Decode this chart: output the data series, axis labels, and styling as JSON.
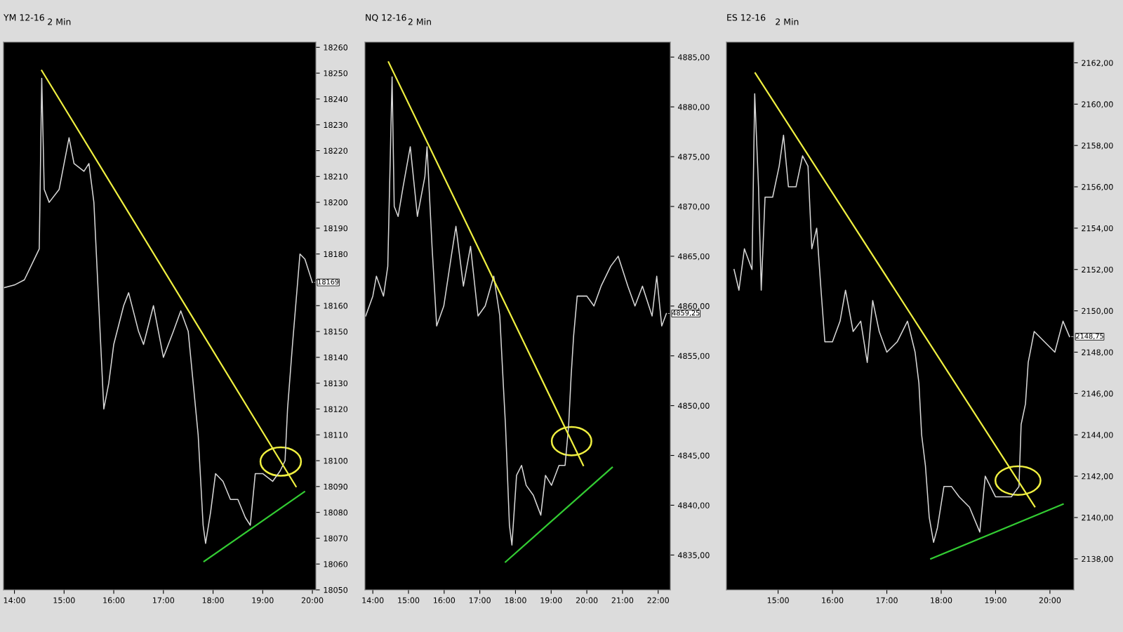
{
  "chart_data": [
    {
      "type": "line",
      "title": "YM 12-16",
      "subtitle": "2 Min",
      "legend": false,
      "grid": false,
      "marker": "none",
      "xlim": [
        13.78,
        20.07
      ],
      "ylim": [
        18050,
        18262
      ],
      "xticks": [
        {
          "value": 14,
          "label": "14:00"
        },
        {
          "value": 15,
          "label": "15:00"
        },
        {
          "value": 16,
          "label": "16:00"
        },
        {
          "value": 17,
          "label": "17:00"
        },
        {
          "value": 18,
          "label": "18:00"
        },
        {
          "value": 19,
          "label": "19:00"
        },
        {
          "value": 20,
          "label": "20:00"
        }
      ],
      "yticks": [
        18050,
        18060,
        18070,
        18080,
        18090,
        18100,
        18110,
        18120,
        18130,
        18140,
        18150,
        18160,
        {
          "value": 18170,
          "label": null
        },
        18180,
        18190,
        18200,
        18210,
        18220,
        18230,
        18240,
        18250,
        18260
      ],
      "annotations": [
        {
          "text": "18169",
          "x": 20.0,
          "y": 18169
        }
      ],
      "series": [
        {
          "color": "#d8d8d8",
          "line_style": "solid",
          "x": [
            13.8,
            14.0,
            14.2,
            14.4,
            14.5,
            14.55,
            14.6,
            14.7,
            14.9,
            15.0,
            15.1,
            15.2,
            15.4,
            15.5,
            15.6,
            15.7,
            15.8,
            15.9,
            16.0,
            16.2,
            16.3,
            16.5,
            16.6,
            16.8,
            16.9,
            17.0,
            17.2,
            17.35,
            17.5,
            17.6,
            17.7,
            17.8,
            17.85,
            17.95,
            18.05,
            18.2,
            18.35,
            18.5,
            18.65,
            18.75,
            18.85,
            19.0,
            19.2,
            19.35,
            19.45,
            19.5,
            19.6,
            19.75,
            19.85,
            19.95,
            20.0
          ],
          "values": [
            18167,
            18168,
            18170,
            18178,
            18182,
            18248,
            18205,
            18200,
            18205,
            18215,
            18225,
            18215,
            18212,
            18215,
            18200,
            18160,
            18120,
            18130,
            18145,
            18160,
            18165,
            18150,
            18145,
            18160,
            18150,
            18140,
            18150,
            18158,
            18150,
            18130,
            18110,
            18075,
            18068,
            18080,
            18095,
            18092,
            18085,
            18085,
            18078,
            18075,
            18095,
            18095,
            18092,
            18096,
            18100,
            18120,
            18145,
            18180,
            18178,
            18172,
            18169
          ]
        },
        {
          "color": "#f0f040",
          "line_style": "solid",
          "x": [
            14.55,
            19.67
          ],
          "values": [
            18251,
            18090
          ]
        },
        {
          "color": "#33cc33",
          "line_style": "solid",
          "x": [
            17.82,
            19.84
          ],
          "values": [
            18061,
            18088
          ]
        }
      ]
    },
    {
      "type": "line",
      "title": "NQ 12-16",
      "subtitle": "2 Min",
      "legend": false,
      "grid": false,
      "marker": "none",
      "xlim": [
        13.78,
        22.34
      ],
      "ylim": [
        4831.5,
        4886.5
      ],
      "xticks": [
        {
          "value": 14,
          "label": "14:00"
        },
        {
          "value": 15,
          "label": "15:00"
        },
        {
          "value": 16,
          "label": "16:00"
        },
        {
          "value": 17,
          "label": "17:00"
        },
        {
          "value": 18,
          "label": "18:00"
        },
        {
          "value": 19,
          "label": "19:00"
        },
        {
          "value": 20,
          "label": "20:00"
        },
        {
          "value": 21,
          "label": "21:00"
        },
        {
          "value": 22,
          "label": "22:00"
        }
      ],
      "yticks": [
        {
          "value": 4835,
          "label": "4835,00"
        },
        {
          "value": 4840,
          "label": "4840,00"
        },
        {
          "value": 4845,
          "label": "4845,00"
        },
        {
          "value": 4850,
          "label": "4850,00"
        },
        {
          "value": 4855,
          "label": "4855,00"
        },
        {
          "value": 4860,
          "label": "4860,00"
        },
        {
          "value": 4865,
          "label": "4865,00"
        },
        {
          "value": 4870,
          "label": "4870,00"
        },
        {
          "value": 4875,
          "label": "4875,00"
        },
        {
          "value": 4880,
          "label": "4880,00"
        },
        {
          "value": 4885,
          "label": "4885,00"
        }
      ],
      "annotations": [
        {
          "text": "4859,25",
          "x": 22.23,
          "y": 4859.25
        }
      ],
      "series": [
        {
          "color": "#d8d8d8",
          "line_style": "solid",
          "x": [
            13.8,
            14.0,
            14.1,
            14.3,
            14.42,
            14.54,
            14.6,
            14.71,
            14.85,
            15.05,
            15.25,
            15.46,
            15.52,
            15.66,
            15.79,
            15.99,
            16.2,
            16.33,
            16.54,
            16.74,
            16.95,
            17.15,
            17.39,
            17.56,
            17.66,
            17.72,
            17.83,
            17.9,
            18.03,
            18.17,
            18.3,
            18.5,
            18.71,
            18.84,
            19.01,
            19.22,
            19.39,
            19.49,
            19.56,
            19.63,
            19.73,
            20.0,
            20.2,
            20.4,
            20.67,
            20.88,
            21.15,
            21.35,
            21.56,
            21.83,
            21.96,
            22.1,
            22.23
          ],
          "values": [
            4859,
            4861,
            4863,
            4861,
            4864,
            4883,
            4870,
            4869,
            4872,
            4876,
            4869,
            4873,
            4876,
            4866,
            4858,
            4860,
            4865,
            4868,
            4862,
            4866,
            4859,
            4860,
            4863,
            4859,
            4852,
            4848,
            4838,
            4836,
            4843,
            4844,
            4842,
            4841,
            4839,
            4843,
            4842,
            4844,
            4844,
            4848,
            4853,
            4857,
            4861,
            4861,
            4860,
            4862,
            4864,
            4865,
            4862,
            4860,
            4862,
            4859,
            4863,
            4858,
            4859.25
          ]
        },
        {
          "color": "#f0f040",
          "line_style": "solid",
          "x": [
            14.44,
            19.9
          ],
          "values": [
            4884.5,
            4844
          ]
        },
        {
          "color": "#33cc33",
          "line_style": "solid",
          "x": [
            17.72,
            20.71
          ],
          "values": [
            4834.3,
            4843.8
          ]
        }
      ]
    },
    {
      "type": "line",
      "title": "ES 12-16",
      "subtitle": "2 Min",
      "legend": false,
      "grid": false,
      "marker": "none",
      "xlim": [
        14.05,
        20.44
      ],
      "ylim": [
        2136.5,
        2163
      ],
      "xticks": [
        {
          "value": 15,
          "label": "15:00"
        },
        {
          "value": 16,
          "label": "16:00"
        },
        {
          "value": 17,
          "label": "17:00"
        },
        {
          "value": 18,
          "label": "18:00"
        },
        {
          "value": 19,
          "label": "19:00"
        },
        {
          "value": 20,
          "label": "20:00"
        }
      ],
      "yticks": [
        {
          "value": 2138,
          "label": "2138,00"
        },
        {
          "value": 2140,
          "label": "2140,00"
        },
        {
          "value": 2142,
          "label": "2142,00"
        },
        {
          "value": 2144,
          "label": "2144,00"
        },
        {
          "value": 2146,
          "label": "2146,00"
        },
        {
          "value": 2148,
          "label": "2148,00"
        },
        {
          "value": 2150,
          "label": "2150,00"
        },
        {
          "value": 2152,
          "label": "2152,00"
        },
        {
          "value": 2154,
          "label": "2154,00"
        },
        {
          "value": 2156,
          "label": "2156,00"
        },
        {
          "value": 2158,
          "label": "2158,00"
        },
        {
          "value": 2160,
          "label": "2160,00"
        },
        {
          "value": 2162,
          "label": "2162,00"
        }
      ],
      "annotations": [
        {
          "text": "2148,75",
          "x": 20.36,
          "y": 2148.75
        }
      ],
      "series": [
        {
          "color": "#d8d8d8",
          "line_style": "solid",
          "x": [
            14.19,
            14.28,
            14.38,
            14.52,
            14.57,
            14.64,
            14.69,
            14.76,
            14.9,
            15.02,
            15.1,
            15.19,
            15.33,
            15.45,
            15.55,
            15.62,
            15.71,
            15.79,
            15.86,
            16.0,
            16.14,
            16.24,
            16.38,
            16.52,
            16.64,
            16.74,
            16.86,
            17.0,
            17.19,
            17.38,
            17.52,
            17.59,
            17.64,
            17.71,
            17.78,
            17.86,
            17.93,
            18.05,
            18.19,
            18.33,
            18.52,
            18.71,
            18.81,
            19.0,
            19.14,
            19.29,
            19.43,
            19.47,
            19.55,
            19.6,
            19.71,
            19.9,
            20.09,
            20.24,
            20.36
          ],
          "values": [
            2152,
            2151,
            2153,
            2152,
            2160.5,
            2156,
            2151,
            2155.5,
            2155.5,
            2157,
            2158.5,
            2156,
            2156,
            2157.5,
            2157,
            2153,
            2154,
            2151,
            2148.5,
            2148.5,
            2149.5,
            2151,
            2149,
            2149.5,
            2147.5,
            2150.5,
            2149,
            2148,
            2148.5,
            2149.5,
            2148,
            2146.5,
            2144,
            2142.5,
            2140,
            2138.8,
            2139.5,
            2141.5,
            2141.5,
            2141,
            2140.5,
            2139.3,
            2142,
            2141,
            2141,
            2141,
            2141.5,
            2144.5,
            2145.5,
            2147.5,
            2149,
            2148.5,
            2148,
            2149.5,
            2148.75
          ]
        },
        {
          "color": "#f0f040",
          "line_style": "solid",
          "x": [
            14.58,
            19.72
          ],
          "values": [
            2161.5,
            2140.53
          ]
        },
        {
          "color": "#33cc33",
          "line_style": "solid",
          "x": [
            17.81,
            20.24
          ],
          "values": [
            2138,
            2140.65
          ]
        }
      ]
    }
  ]
}
